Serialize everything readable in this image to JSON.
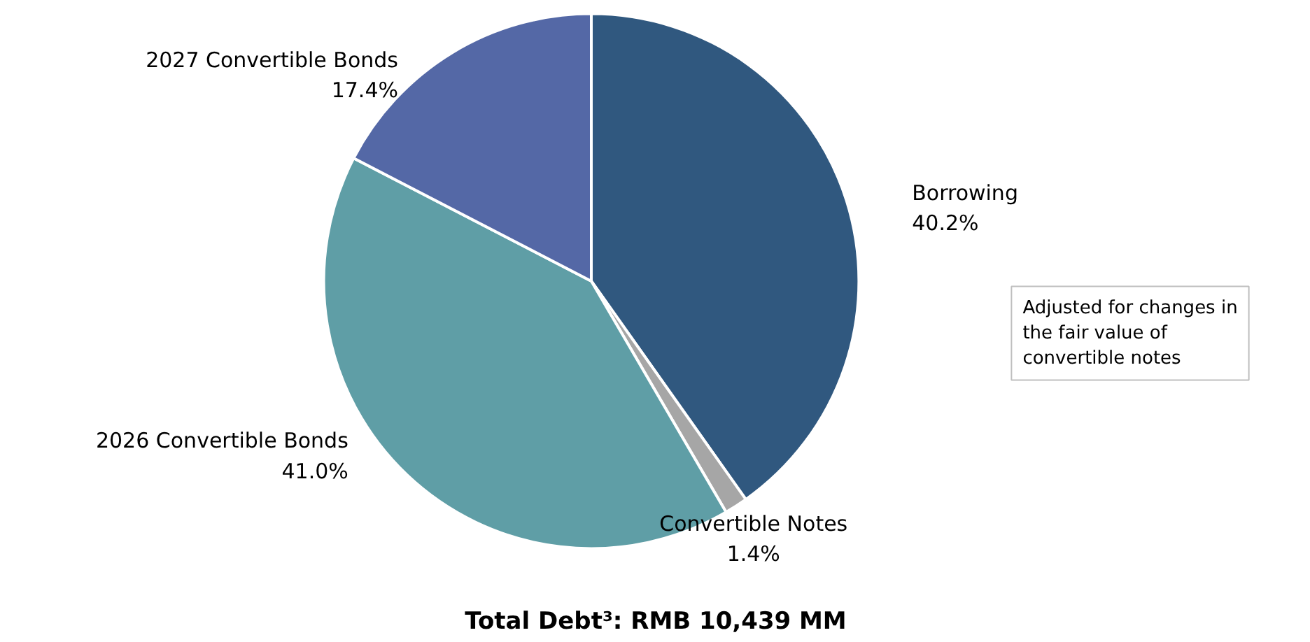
{
  "chart_data": {
    "type": "pie",
    "title": "Total Debt³: RMB 10,439 MM",
    "categories": [
      "Borrowing",
      "Convertible Notes",
      "2026 Convertible Bonds",
      "2027 Convertible Bonds"
    ],
    "values": [
      40.2,
      1.4,
      41.0,
      17.4
    ],
    "value_labels": [
      "40.2%",
      "1.4%",
      "41.0%",
      "17.4%"
    ],
    "colors": [
      "#30587f",
      "#a6a6a6",
      "#5f9ea6",
      "#5468a6"
    ],
    "annotations": [
      "Adjusted for changes in the fair value of convertible notes"
    ],
    "legend": false
  }
}
